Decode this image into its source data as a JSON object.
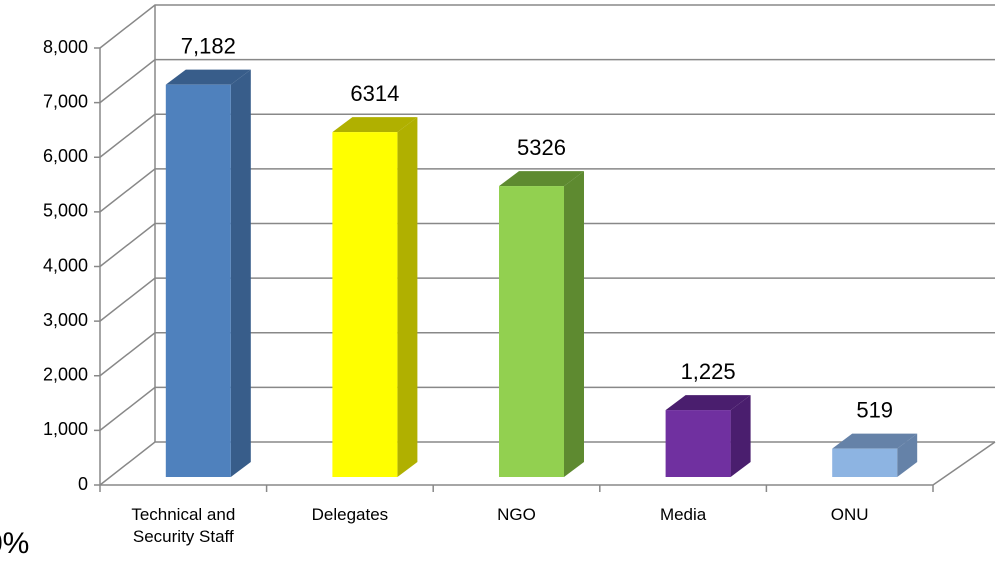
{
  "chart_data": {
    "type": "bar3d",
    "categories": [
      "Technical and Security Staff",
      "Delegates",
      "NGO",
      "Media",
      "ONU"
    ],
    "values": [
      7182,
      6314,
      5326,
      1225,
      519
    ],
    "value_labels": [
      "7,182",
      "6314",
      "5326",
      "1,225",
      "519"
    ],
    "colors": [
      "#4f81bd",
      "#ffff00",
      "#92d050",
      "#7030a0",
      "#8db4e2"
    ],
    "side_colors": [
      "#385d8a",
      "#b0b000",
      "#5e8a30",
      "#4a1e6e",
      "#6582a8"
    ],
    "ylim": [
      0,
      8000
    ],
    "yticks": [
      0,
      {
        "value": 1000,
        "label": "1,000"
      },
      {
        "value": 2000,
        "label": "2,000"
      },
      {
        "value": 3000,
        "label": "3,000"
      },
      {
        "value": 4000,
        "label": "4,000"
      },
      {
        "value": 5000,
        "label": "5,000"
      },
      {
        "value": 6000,
        "label": "6,000"
      },
      {
        "value": 7000,
        "label": "7,000"
      },
      {
        "value": 8000,
        "label": "8,000"
      }
    ],
    "grid": true,
    "annotation": "0%"
  }
}
